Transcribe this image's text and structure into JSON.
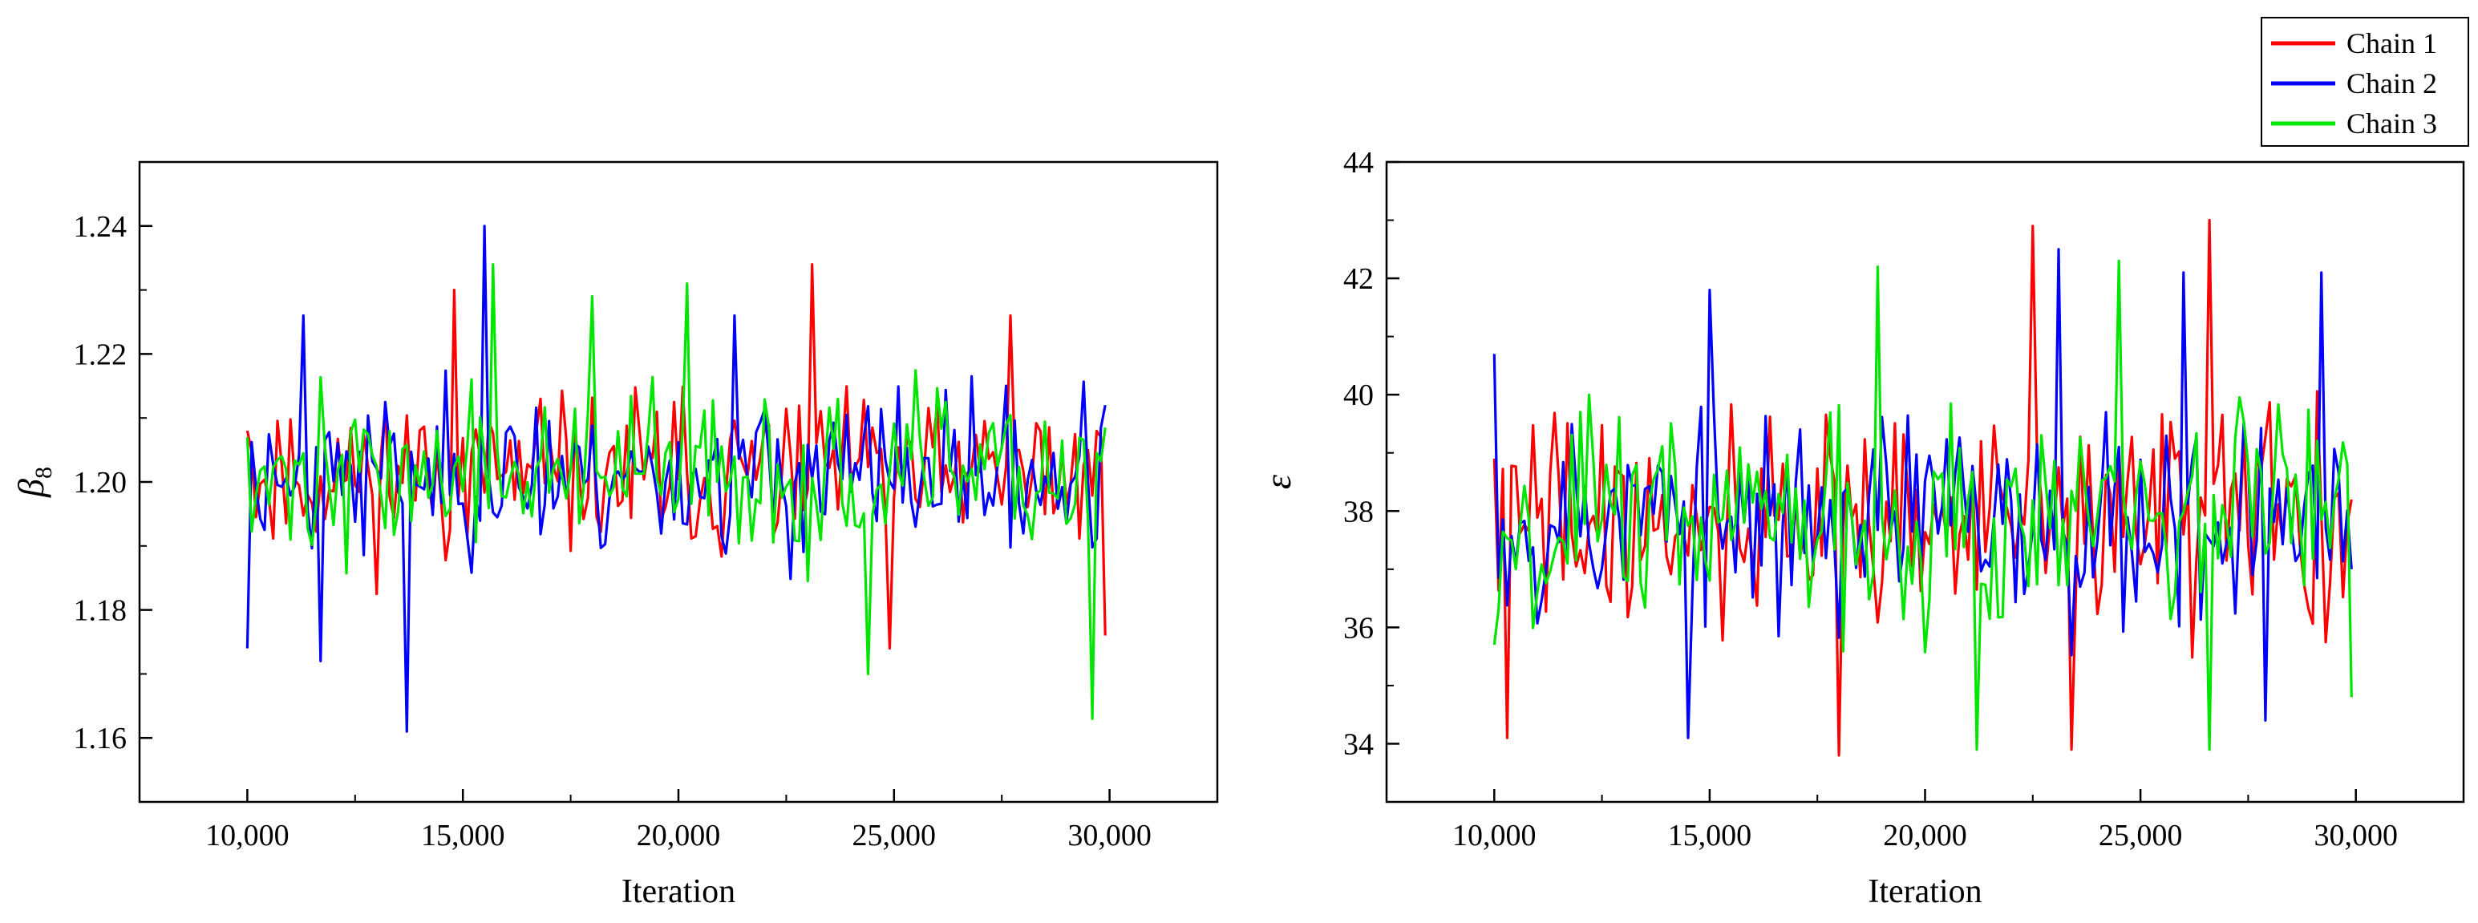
{
  "figure": {
    "legend": {
      "entries": [
        {
          "label": "Chain 1",
          "color": "#ff0000"
        },
        {
          "label": "Chain 2",
          "color": "#0000ff"
        },
        {
          "label": "Chain 3",
          "color": "#00e600"
        }
      ],
      "placement": "top-right"
    }
  },
  "chart_data": [
    {
      "type": "line",
      "title": "",
      "xlabel": "Iteration",
      "ylabel_symbol": "β",
      "ylabel_subscript": "8",
      "xlim": [
        7500,
        32500
      ],
      "ylim": [
        1.15,
        1.25
      ],
      "xticks": [
        10000,
        15000,
        20000,
        25000,
        30000
      ],
      "xtick_labels": [
        "10,000",
        "15,000",
        "20,000",
        "25,000",
        "30,000"
      ],
      "yticks": [
        1.16,
        1.18,
        1.2,
        1.22,
        1.24
      ],
      "ytick_labels": [
        "1.16",
        "1.18",
        "1.20",
        "1.22",
        "1.24"
      ],
      "grid": false,
      "x": {
        "start": 10000,
        "step": 100,
        "count": 200
      },
      "series": [
        {
          "name": "Chain 1",
          "color": "#ff0000",
          "mean": 1.201,
          "spread": 0.0085,
          "min": 1.174,
          "max": 1.234,
          "seed": 11,
          "spikes": [
            [
              10000,
              1.208
            ],
            [
              14800,
              1.23
            ],
            [
              23100,
              1.234
            ],
            [
              24900,
              1.174
            ],
            [
              29900,
              1.176
            ],
            [
              27700,
              1.226
            ]
          ]
        },
        {
          "name": "Chain 2",
          "color": "#0000ff",
          "mean": 1.201,
          "spread": 0.0085,
          "min": 1.161,
          "max": 1.24,
          "seed": 23,
          "spikes": [
            [
              10000,
              1.174
            ],
            [
              13700,
              1.161
            ],
            [
              15500,
              1.24
            ],
            [
              11300,
              1.226
            ],
            [
              11700,
              1.172
            ],
            [
              21300,
              1.226
            ],
            [
              29900,
              1.212
            ]
          ]
        },
        {
          "name": "Chain 3",
          "color": "#00e600",
          "mean": 1.201,
          "spread": 0.0085,
          "min": 1.163,
          "max": 1.234,
          "seed": 37,
          "spikes": [
            [
              10000,
              1.207
            ],
            [
              15700,
              1.234
            ],
            [
              20200,
              1.231
            ],
            [
              24400,
              1.17
            ],
            [
              29600,
              1.163
            ],
            [
              18000,
              1.229
            ]
          ]
        }
      ]
    },
    {
      "type": "line",
      "title": "",
      "xlabel": "Iteration",
      "ylabel_symbol": "ε",
      "ylabel_subscript": "",
      "xlim": [
        7500,
        32500
      ],
      "ylim": [
        33,
        44
      ],
      "xticks": [
        10000,
        15000,
        20000,
        25000,
        30000
      ],
      "xtick_labels": [
        "10,000",
        "15,000",
        "20,000",
        "25,000",
        "30,000"
      ],
      "yticks": [
        34,
        36,
        38,
        40,
        42,
        44
      ],
      "ytick_labels": [
        "34",
        "36",
        "38",
        "40",
        "42",
        "44"
      ],
      "grid": false,
      "x": {
        "start": 10000,
        "step": 100,
        "count": 200
      },
      "series": [
        {
          "name": "Chain 1",
          "color": "#ff0000",
          "mean": 37.9,
          "spread": 1.3,
          "min": 33.8,
          "max": 43.0,
          "seed": 41,
          "spikes": [
            [
              10000,
              38.9
            ],
            [
              10300,
              34.1
            ],
            [
              18000,
              33.8
            ],
            [
              22500,
              42.9
            ],
            [
              26600,
              43.0
            ],
            [
              29900,
              38.2
            ],
            [
              23400,
              33.9
            ]
          ]
        },
        {
          "name": "Chain 2",
          "color": "#0000ff",
          "mean": 37.9,
          "spread": 1.3,
          "min": 34.1,
          "max": 42.5,
          "seed": 53,
          "spikes": [
            [
              10000,
              40.7
            ],
            [
              15000,
              41.8
            ],
            [
              23100,
              42.5
            ],
            [
              26000,
              42.1
            ],
            [
              29200,
              42.1
            ],
            [
              14500,
              34.1
            ],
            [
              27900,
              34.4
            ],
            [
              29900,
              37.0
            ]
          ]
        },
        {
          "name": "Chain 3",
          "color": "#00e600",
          "mean": 37.9,
          "spread": 1.3,
          "min": 33.9,
          "max": 42.3,
          "seed": 67,
          "spikes": [
            [
              10000,
              35.7
            ],
            [
              18900,
              42.2
            ],
            [
              24500,
              42.3
            ],
            [
              21200,
              33.9
            ],
            [
              26600,
              33.9
            ],
            [
              29900,
              34.8
            ]
          ]
        }
      ]
    }
  ]
}
